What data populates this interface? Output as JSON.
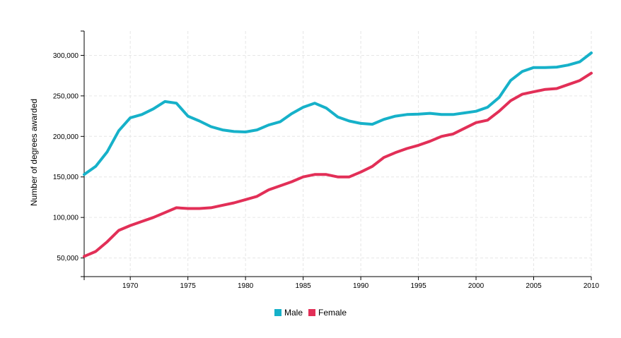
{
  "chart_data": {
    "type": "line",
    "title": "",
    "xlabel": "",
    "ylabel": "Number of degrees awarded",
    "xlim": [
      1966,
      2010
    ],
    "ylim": [
      27000,
      330000
    ],
    "xticks": [
      1970,
      1975,
      1980,
      1985,
      1990,
      1995,
      2000,
      2005,
      2010
    ],
    "yticks": [
      50000,
      100000,
      150000,
      200000,
      250000,
      300000
    ],
    "ytick_labels": [
      "50,000",
      "100,000",
      "150,000",
      "200,000",
      "250,000",
      "300,000"
    ],
    "grid": true,
    "legend_position": "bottom-center",
    "x": [
      1966,
      1967,
      1968,
      1969,
      1970,
      1971,
      1972,
      1973,
      1974,
      1975,
      1976,
      1977,
      1978,
      1979,
      1980,
      1981,
      1982,
      1983,
      1984,
      1985,
      1986,
      1987,
      1988,
      1989,
      1990,
      1991,
      1992,
      1993,
      1994,
      1995,
      1996,
      1997,
      1998,
      1999,
      2000,
      2001,
      2002,
      2003,
      2004,
      2005,
      2006,
      2007,
      2008,
      2009,
      2010
    ],
    "series": [
      {
        "name": "Male",
        "color": "#16b1c9",
        "values": [
          153000,
          163000,
          181000,
          207000,
          223000,
          227000,
          234000,
          243000,
          241000,
          225000,
          219000,
          212000,
          208000,
          206000,
          205500,
          208000,
          214000,
          218000,
          228000,
          236000,
          241000,
          235000,
          224000,
          219000,
          216000,
          215000,
          221000,
          225000,
          227000,
          227500,
          228500,
          227000,
          227000,
          229000,
          231000,
          236000,
          248000,
          269000,
          280000,
          285000,
          285000,
          285500,
          288000,
          292000,
          303000
        ]
      },
      {
        "name": "Female",
        "color": "#e22f57",
        "values": [
          52000,
          58000,
          70000,
          84000,
          90000,
          95000,
          100000,
          106000,
          112000,
          111000,
          111000,
          112000,
          115000,
          118000,
          122000,
          126000,
          134000,
          139000,
          144000,
          150000,
          153000,
          153000,
          150000,
          150000,
          156000,
          163000,
          174000,
          180000,
          185000,
          189000,
          194000,
          200000,
          203000,
          210000,
          217000,
          220000,
          231000,
          244000,
          252000,
          255000,
          258000,
          259000,
          264000,
          269000,
          278000
        ]
      }
    ]
  },
  "legend": {
    "items": [
      {
        "label": "Male",
        "color": "#16b1c9"
      },
      {
        "label": "Female",
        "color": "#e22f57"
      }
    ]
  }
}
